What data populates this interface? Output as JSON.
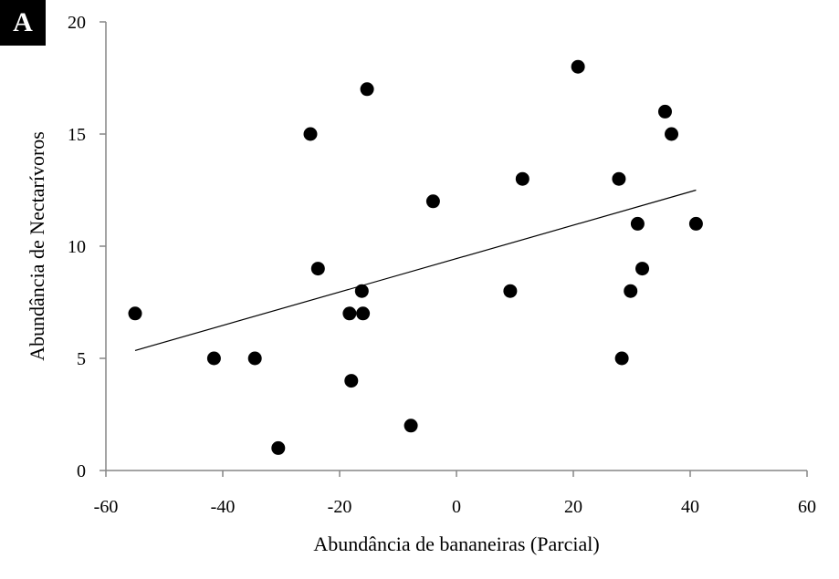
{
  "panel_label": "A",
  "chart_data": {
    "type": "scatter",
    "title": "",
    "xlabel": "Abundância de bananeiras (Parcial)",
    "ylabel": "Abundância de Nectarívoros",
    "xlim": [
      -60,
      60
    ],
    "ylim": [
      0,
      20
    ],
    "xticks": [
      -60,
      -40,
      -20,
      0,
      20,
      40,
      60
    ],
    "yticks": [
      0,
      5,
      10,
      15,
      20
    ],
    "grid": false,
    "points": [
      {
        "x": -55,
        "y": 7
      },
      {
        "x": -41.5,
        "y": 5
      },
      {
        "x": -34.5,
        "y": 5
      },
      {
        "x": -30.5,
        "y": 1
      },
      {
        "x": -25,
        "y": 15
      },
      {
        "x": -23.7,
        "y": 9
      },
      {
        "x": -18.3,
        "y": 7
      },
      {
        "x": -18,
        "y": 4
      },
      {
        "x": -16.2,
        "y": 8
      },
      {
        "x": -16,
        "y": 7
      },
      {
        "x": -15.3,
        "y": 17
      },
      {
        "x": -7.8,
        "y": 2
      },
      {
        "x": -4,
        "y": 12
      },
      {
        "x": 9.2,
        "y": 8
      },
      {
        "x": 11.3,
        "y": 13
      },
      {
        "x": 20.8,
        "y": 18
      },
      {
        "x": 27.8,
        "y": 13
      },
      {
        "x": 28.3,
        "y": 5
      },
      {
        "x": 29.8,
        "y": 8
      },
      {
        "x": 31,
        "y": 11
      },
      {
        "x": 31.8,
        "y": 9
      },
      {
        "x": 35.7,
        "y": 16
      },
      {
        "x": 36.8,
        "y": 15
      },
      {
        "x": 41,
        "y": 11
      }
    ],
    "trendline": {
      "x": [
        -55,
        41
      ],
      "y": [
        5.35,
        12.5
      ]
    },
    "colors": {
      "marker": "#000000",
      "line": "#000000",
      "axis": "#868686"
    }
  }
}
